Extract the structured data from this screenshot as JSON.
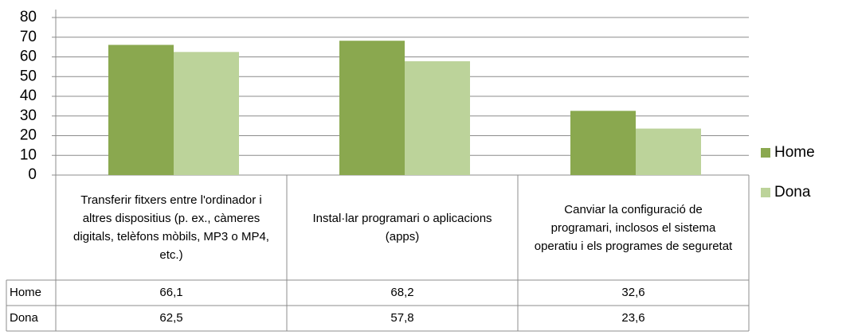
{
  "chart_data": {
    "type": "bar",
    "categories": [
      "Transferir fitxers entre l'ordinador i altres dispositius (p. ex., càmeres digitals, telèfons mòbils, MP3 o MP4, etc.)",
      "Instal·lar programari o aplicacions (apps)",
      "Canviar la configuració de programari, inclosos el sistema operatiu i els programes de seguretat"
    ],
    "series": [
      {
        "name": "Home",
        "color": "#8aa84f",
        "values": [
          66.1,
          68.2,
          32.6
        ],
        "value_labels": [
          "66,1",
          "68,2",
          "32,6"
        ]
      },
      {
        "name": "Dona",
        "color": "#bcd39a",
        "values": [
          62.5,
          57.8,
          23.6
        ],
        "value_labels": [
          "62,5",
          "57,8",
          "23,6"
        ]
      }
    ],
    "ylim": [
      0,
      80
    ],
    "yticks": [
      0,
      10,
      20,
      30,
      40,
      50,
      60,
      70,
      80
    ],
    "grid": true,
    "legend": "right"
  }
}
